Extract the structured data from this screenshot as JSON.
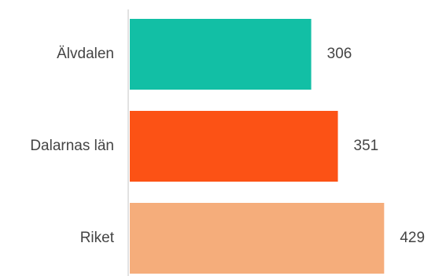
{
  "chart_data": {
    "type": "bar",
    "orientation": "horizontal",
    "categories": [
      "Älvdalen",
      "Dalarnas län",
      "Riket"
    ],
    "values": [
      306,
      351,
      429
    ],
    "value_labels": [
      "306",
      "351",
      "429"
    ],
    "colors": [
      "#12bfa5",
      "#fc5215",
      "#f5ad7b"
    ],
    "xlim": [
      0,
      500
    ],
    "grid": false,
    "legend": "none",
    "title": "",
    "xlabel": "",
    "ylabel": ""
  }
}
